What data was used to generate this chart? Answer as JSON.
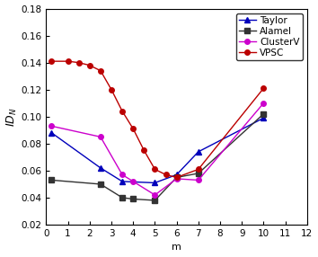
{
  "title": "",
  "xlabel": "m",
  "ylabel": "$ID_N$",
  "xlim": [
    0,
    12
  ],
  "ylim": [
    0.02,
    0.18
  ],
  "yticks": [
    0.02,
    0.04,
    0.06,
    0.08,
    0.1,
    0.12,
    0.14,
    0.16,
    0.18
  ],
  "xticks": [
    0,
    1,
    2,
    3,
    4,
    5,
    6,
    7,
    8,
    9,
    10,
    11,
    12
  ],
  "series": [
    {
      "label": "Taylor",
      "color": "#0000bb",
      "marker": "^",
      "markersize": 4,
      "x": [
        0.25,
        2.5,
        3.5,
        5.0,
        6.0,
        7.0,
        10.0
      ],
      "y": [
        0.088,
        0.062,
        0.052,
        0.051,
        0.057,
        0.074,
        0.099
      ]
    },
    {
      "label": "Alamel",
      "color": "#333333",
      "marker": "s",
      "markersize": 4,
      "x": [
        0.25,
        2.5,
        3.5,
        4.0,
        5.0,
        6.0,
        7.0,
        10.0
      ],
      "y": [
        0.053,
        0.05,
        0.04,
        0.039,
        0.038,
        0.055,
        0.058,
        0.102
      ]
    },
    {
      "label": "ClusterV",
      "color": "#cc00cc",
      "marker": "o",
      "markersize": 4,
      "x": [
        0.25,
        2.5,
        3.5,
        4.0,
        5.0,
        6.0,
        7.0,
        10.0
      ],
      "y": [
        0.093,
        0.085,
        0.057,
        0.052,
        0.042,
        0.054,
        0.053,
        0.11
      ]
    },
    {
      "label": "VPSC",
      "color": "#bb0000",
      "marker": "o",
      "markersize": 4,
      "x": [
        0.25,
        1.0,
        1.5,
        2.0,
        2.5,
        3.0,
        3.5,
        4.0,
        4.5,
        5.0,
        5.5,
        6.0,
        7.0,
        10.0
      ],
      "y": [
        0.141,
        0.141,
        0.14,
        0.138,
        0.134,
        0.12,
        0.104,
        0.091,
        0.075,
        0.061,
        0.057,
        0.055,
        0.061,
        0.121
      ]
    }
  ],
  "legend_loc": "upper right",
  "background_color": "#ffffff"
}
